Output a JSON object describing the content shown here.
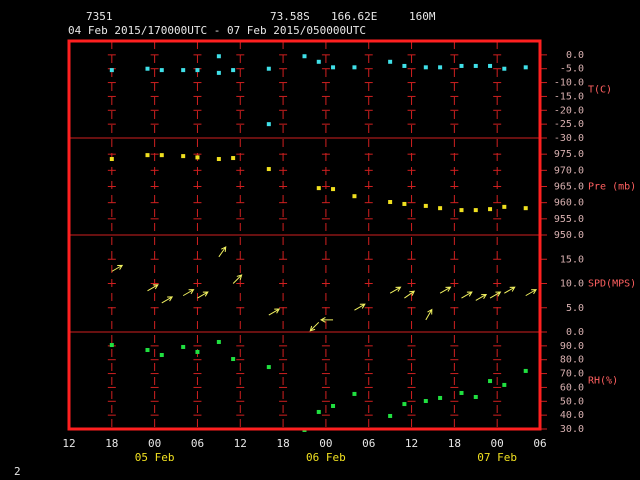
{
  "header": {
    "station": "7351",
    "latitude": "73.58S",
    "longitude": "166.62E",
    "elevation": "160M",
    "period": "04 Feb 2015/170000UTC - 07 Feb 2015/050000UTC"
  },
  "page_number": "2",
  "chart_data": [
    {
      "type": "scatter",
      "ylabel": "T(C)",
      "color": "#40e0e8",
      "x": [
        "2015-02-04 18:00",
        "2015-02-04 23:00",
        "2015-02-05 01:00",
        "2015-02-05 04:00",
        "2015-02-05 06:00",
        "2015-02-05 09:00",
        "2015-02-05 09:00",
        "2015-02-05 11:00",
        "2015-02-05 16:00",
        "2015-02-05 16:00",
        "2015-02-05 21:00",
        "2015-02-05 23:00",
        "2015-02-06 01:00",
        "2015-02-06 04:00",
        "2015-02-06 09:00",
        "2015-02-06 11:00",
        "2015-02-06 14:00",
        "2015-02-06 16:00",
        "2015-02-06 19:00",
        "2015-02-06 21:00",
        "2015-02-06 23:00",
        "2015-02-07 01:00",
        "2015-02-07 04:00"
      ],
      "values": [
        -5.5,
        -5,
        -5.5,
        -5.5,
        -5.5,
        -0.5,
        -6.5,
        -5.5,
        -5,
        -25,
        -0.5,
        -2.5,
        -4.5,
        -4.5,
        -2.5,
        -4,
        -4.5,
        -4.5,
        -4,
        -4,
        -4,
        -5,
        -4.5
      ],
      "ylim": [
        -30,
        5
      ],
      "yticks": [
        {
          "value": 0,
          "label": "0.0"
        },
        {
          "value": -5,
          "label": "-5.0"
        },
        {
          "value": -10,
          "label": "-10.0"
        },
        {
          "value": -15,
          "label": "-15.0"
        },
        {
          "value": -20,
          "label": "-20.0"
        },
        {
          "value": -25,
          "label": "-25.0"
        },
        {
          "value": -30,
          "label": "-30.0"
        }
      ]
    },
    {
      "type": "scatter",
      "ylabel": "Pre (mb)",
      "color": "#f0e020",
      "x": [
        "2015-02-04 18:00",
        "2015-02-04 23:00",
        "2015-02-05 01:00",
        "2015-02-05 04:00",
        "2015-02-05 06:00",
        "2015-02-05 09:00",
        "2015-02-05 11:00",
        "2015-02-05 16:00",
        "2015-02-05 23:00",
        "2015-02-06 01:00",
        "2015-02-06 04:00",
        "2015-02-06 09:00",
        "2015-02-06 11:00",
        "2015-02-06 14:00",
        "2015-02-06 16:00",
        "2015-02-06 19:00",
        "2015-02-06 21:00",
        "2015-02-06 23:00",
        "2015-02-07 01:00",
        "2015-02-07 04:00"
      ],
      "values": [
        973.5,
        974.7,
        974.7,
        974.4,
        974,
        973.5,
        973.8,
        970.4,
        964.5,
        964.2,
        962,
        960.2,
        959.6,
        959,
        958.3,
        957.7,
        957.7,
        958,
        958.7,
        958.3
      ],
      "ylim": [
        950,
        980
      ],
      "yticks": [
        {
          "value": 975,
          "label": "975.0"
        },
        {
          "value": 970,
          "label": "970.0"
        },
        {
          "value": 965,
          "label": "965.0"
        },
        {
          "value": 960,
          "label": "960.0"
        },
        {
          "value": 955,
          "label": "955.0"
        },
        {
          "value": 950,
          "label": "950.0"
        }
      ]
    },
    {
      "type": "quiver",
      "ylabel": "SPD(MPS)",
      "color": "#f0f060",
      "x": [
        "2015-02-04 18:00",
        "2015-02-04 23:00",
        "2015-02-05 01:00",
        "2015-02-05 04:00",
        "2015-02-05 06:00",
        "2015-02-05 09:00",
        "2015-02-05 11:00",
        "2015-02-05 16:00",
        "2015-02-05 23:00",
        "2015-02-06 01:00",
        "2015-02-06 04:00",
        "2015-02-06 09:00",
        "2015-02-06 11:00",
        "2015-02-06 14:00",
        "2015-02-06 16:00",
        "2015-02-06 19:00",
        "2015-02-06 21:00",
        "2015-02-06 23:00",
        "2015-02-07 01:00",
        "2015-02-07 04:00"
      ],
      "values": [
        12.5,
        8.5,
        6,
        7.5,
        7,
        15.5,
        10,
        3.5,
        2,
        2.5,
        4.5,
        8,
        7,
        2.5,
        8,
        7,
        6.5,
        7,
        8,
        7.5
      ],
      "direction": [
        60,
        60,
        60,
        60,
        60,
        35,
        45,
        60,
        225,
        270,
        60,
        60,
        55,
        30,
        60,
        60,
        60,
        60,
        60,
        60
      ],
      "ylim": [
        0,
        20
      ],
      "yticks": [
        {
          "value": 15,
          "label": "15.0"
        },
        {
          "value": 10,
          "label": "10.0"
        },
        {
          "value": 5,
          "label": "5.0"
        },
        {
          "value": 0,
          "label": "0.0"
        }
      ]
    },
    {
      "type": "scatter",
      "ylabel": "RH(%)",
      "color": "#20e040",
      "x": [
        "2015-02-04 18:00",
        "2015-02-04 23:00",
        "2015-02-05 01:00",
        "2015-02-05 04:00",
        "2015-02-05 06:00",
        "2015-02-05 09:00",
        "2015-02-05 11:00",
        "2015-02-05 16:00",
        "2015-02-05 21:00",
        "2015-02-05 23:00",
        "2015-02-06 01:00",
        "2015-02-06 04:00",
        "2015-02-06 09:00",
        "2015-02-06 11:00",
        "2015-02-06 14:00",
        "2015-02-06 16:00",
        "2015-02-06 19:00",
        "2015-02-06 21:00",
        "2015-02-06 23:00",
        "2015-02-07 01:00",
        "2015-02-07 04:00"
      ],
      "values": [
        90.6,
        87,
        83.4,
        89.2,
        85.6,
        92.8,
        80.5,
        74.7,
        29.3,
        42.3,
        46.6,
        55.3,
        39.4,
        48,
        50.2,
        52.4,
        56,
        53.1,
        64.6,
        61.8,
        71.9
      ],
      "ylim": [
        30,
        100
      ],
      "yticks": [
        {
          "value": 90,
          "label": "90.0"
        },
        {
          "value": 80,
          "label": "80.0"
        },
        {
          "value": 70,
          "label": "70.0"
        },
        {
          "value": 60,
          "label": "60.0"
        },
        {
          "value": 50,
          "label": "50.0"
        },
        {
          "value": 40,
          "label": "40.0"
        },
        {
          "value": 30,
          "label": "30.0"
        }
      ],
      "xlim": [
        "2015-02-04 12:00",
        "2015-02-07 06:00"
      ],
      "xticks": [
        {
          "value": "2015-02-04 12:00",
          "label": "12"
        },
        {
          "value": "2015-02-04 18:00",
          "label": "18"
        },
        {
          "value": "2015-02-05 00:00",
          "label": "00"
        },
        {
          "value": "2015-02-05 06:00",
          "label": "06"
        },
        {
          "value": "2015-02-05 12:00",
          "label": "12"
        },
        {
          "value": "2015-02-05 18:00",
          "label": "18"
        },
        {
          "value": "2015-02-06 00:00",
          "label": "00"
        },
        {
          "value": "2015-02-06 06:00",
          "label": "06"
        },
        {
          "value": "2015-02-06 12:00",
          "label": "12"
        },
        {
          "value": "2015-02-06 18:00",
          "label": "18"
        },
        {
          "value": "2015-02-07 00:00",
          "label": "00"
        },
        {
          "value": "2015-02-07 06:00",
          "label": "06"
        }
      ],
      "xticks_day": [
        {
          "value": "2015-02-05 00:00",
          "label": "05 Feb"
        },
        {
          "value": "2015-02-06 00:00",
          "label": "06 Feb"
        },
        {
          "value": "2015-02-07 00:00",
          "label": "07 Feb"
        }
      ]
    }
  ]
}
